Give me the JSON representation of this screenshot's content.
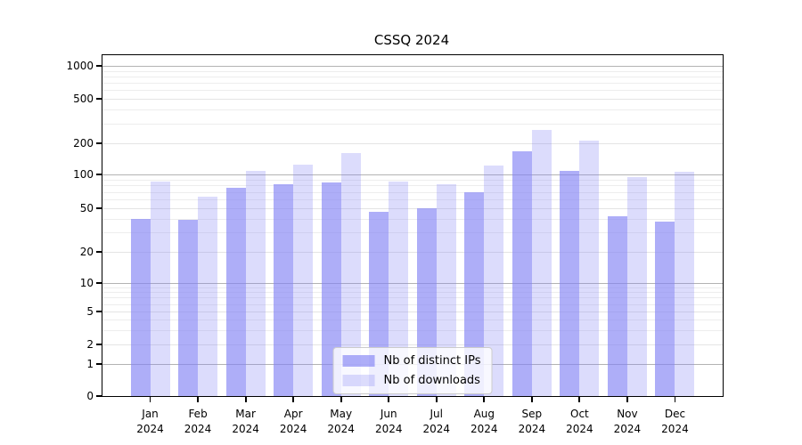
{
  "title": "CSSQ 2024",
  "chart_data": {
    "type": "bar",
    "title": "CSSQ 2024",
    "categories": [
      "Jan 2024",
      "Feb 2024",
      "Mar 2024",
      "Apr 2024",
      "May 2024",
      "Jun 2024",
      "Jul 2024",
      "Aug 2024",
      "Sep 2024",
      "Oct 2024",
      "Nov 2024",
      "Dec 2024"
    ],
    "series": [
      {
        "name": "Nb of distinct IPs",
        "color": "#8282f5",
        "alpha": 0.65,
        "values": [
          40,
          39,
          76,
          82,
          85,
          46,
          50,
          70,
          167,
          108,
          42,
          38
        ]
      },
      {
        "name": "Nb of downloads",
        "color": "#8282f5",
        "alpha": 0.28,
        "values": [
          86,
          63,
          108,
          124,
          160,
          86,
          82,
          122,
          265,
          210,
          95,
          106
        ]
      }
    ],
    "xlabel": "",
    "ylabel": "",
    "yscale": "symlog",
    "yticks": [
      0,
      1,
      2,
      5,
      10,
      20,
      50,
      100,
      200,
      500,
      1000
    ],
    "ylim": [
      0,
      1400
    ],
    "grid": "horizontal",
    "legend_position": "lower center"
  },
  "legend": {
    "items": [
      {
        "label": "Nb of distinct IPs"
      },
      {
        "label": "Nb of downloads"
      }
    ]
  }
}
